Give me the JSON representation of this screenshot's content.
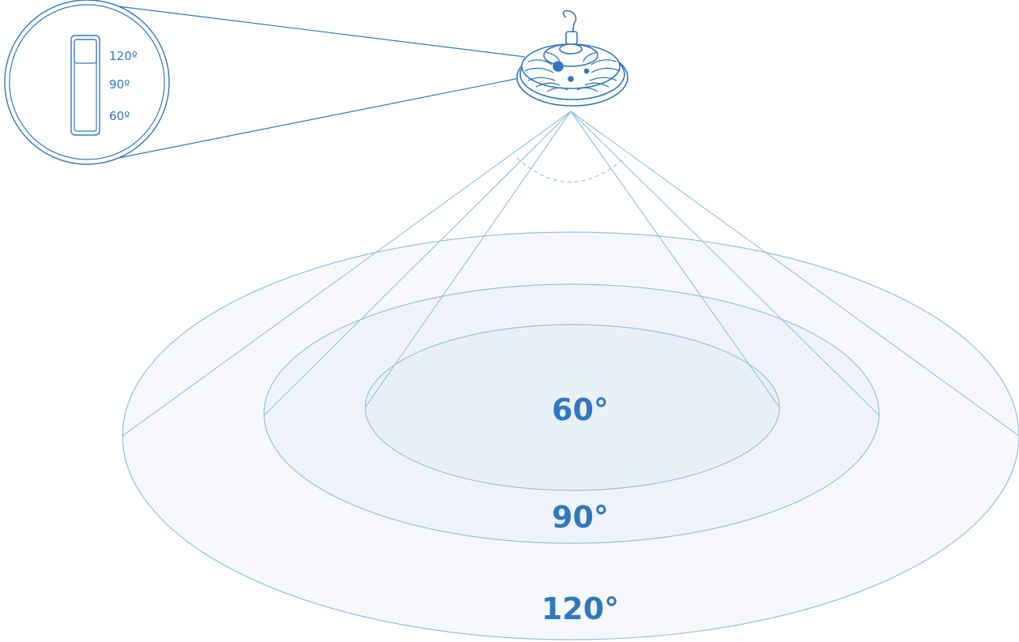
{
  "colors": {
    "line": "#8fc0e2",
    "line_dark": "#2f77bd",
    "label": "#2f78c0",
    "fill_outer": "#f6f8fc",
    "fill_mid": "#f0f4fa",
    "fill_inner": "#eaf0f8"
  },
  "beam_angles": [
    {
      "key": "60",
      "label": "60°"
    },
    {
      "key": "90",
      "label": "90°"
    },
    {
      "key": "120",
      "label": "120°"
    }
  ],
  "switch_panel": {
    "options": [
      "120º",
      "90º",
      "60º"
    ],
    "selected": "120º"
  },
  "fixture": {
    "icon": "ufo-high-bay-light-icon"
  }
}
